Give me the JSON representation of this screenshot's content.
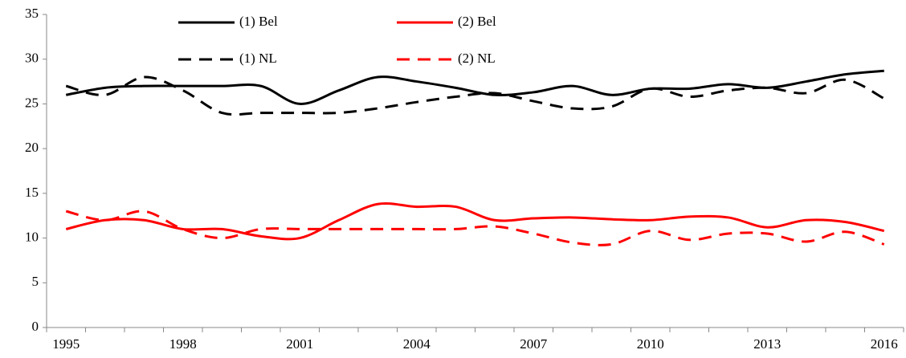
{
  "chart_data": {
    "type": "line",
    "categories": [
      "1995",
      null,
      null,
      "1998",
      null,
      null,
      "2001",
      null,
      null,
      "2004",
      null,
      null,
      "2007",
      null,
      null,
      "2010",
      null,
      null,
      "2013",
      null,
      null,
      "2016"
    ],
    "series": [
      {
        "name": "(1) Bel",
        "color": "#000000",
        "dash": false,
        "values": [
          26,
          26.8,
          27,
          27,
          27,
          27,
          25,
          26.5,
          28,
          27.5,
          26.8,
          26,
          26.3,
          27,
          26,
          26.7,
          26.7,
          27.2,
          26.8,
          27.5,
          28.3,
          28.7
        ]
      },
      {
        "name": "(2) Bel",
        "color": "#ff0000",
        "dash": false,
        "values": [
          11,
          12,
          12,
          11,
          11,
          10.2,
          10,
          12,
          13.8,
          13.5,
          13.5,
          12,
          12.2,
          12.3,
          12.1,
          12,
          12.4,
          12.3,
          11.2,
          12,
          11.8,
          10.8
        ]
      },
      {
        "name": "(1) NL",
        "color": "#000000",
        "dash": true,
        "values": [
          27,
          26,
          28,
          26.5,
          24,
          24,
          24,
          24,
          24.5,
          25.2,
          25.8,
          26.2,
          25.3,
          24.5,
          24.7,
          26.7,
          25.8,
          26.5,
          26.8,
          26.2,
          27.7,
          25.6
        ]
      },
      {
        "name": "(2) NL",
        "color": "#ff0000",
        "dash": true,
        "values": [
          13,
          12,
          13,
          11,
          10,
          11,
          11,
          11,
          11,
          11,
          11,
          11.3,
          10.5,
          9.5,
          9.3,
          10.8,
          9.8,
          10.5,
          10.5,
          9.6,
          10.7,
          9.3
        ]
      }
    ],
    "ylim": [
      0,
      35
    ],
    "yticks": [
      0,
      5,
      10,
      15,
      20,
      25,
      30,
      35
    ],
    "grid": false
  }
}
